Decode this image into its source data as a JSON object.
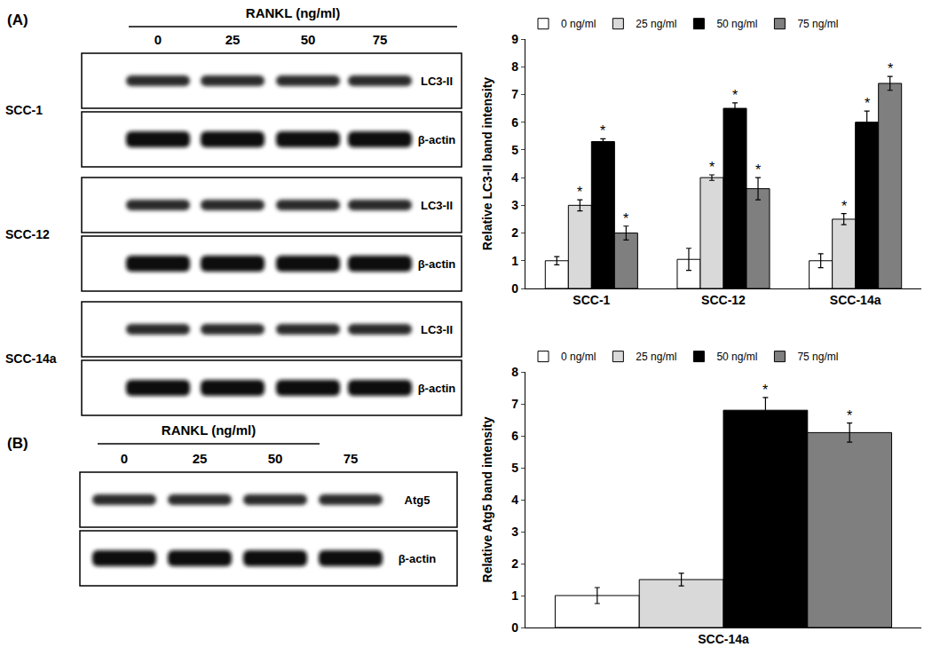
{
  "chart_data": [
    {
      "type": "bar",
      "categories": [
        "SCC-1",
        "SCC-12",
        "SCC-14a"
      ],
      "y_label": "Relative LC3-II band intensity",
      "ylim": [
        0,
        9
      ],
      "yticks": [
        0,
        1,
        2,
        3,
        4,
        5,
        6,
        7,
        8,
        9
      ],
      "grid": false,
      "legend": "top left",
      "series": [
        {
          "name": "0 ng/ml",
          "color": "#ffffff",
          "values": [
            1.0,
            1.05,
            1.0
          ],
          "errors": [
            0.15,
            0.4,
            0.25
          ],
          "annotations": [
            null,
            null,
            null
          ]
        },
        {
          "name": "25 ng/ml",
          "color": "#d9d9d9",
          "values": [
            3.0,
            4.0,
            2.5
          ],
          "errors": [
            0.2,
            0.1,
            0.2
          ],
          "annotations": [
            "*",
            "*",
            "*"
          ]
        },
        {
          "name": "50 ng/ml",
          "color": "#000000",
          "values": [
            5.3,
            6.5,
            6.0
          ],
          "errors": [
            0.1,
            0.2,
            0.4
          ],
          "annotations": [
            "*",
            "*",
            "*"
          ]
        },
        {
          "name": "75 ng/ml",
          "color": "#7f7f7f",
          "values": [
            2.0,
            3.6,
            7.4
          ],
          "errors": [
            0.25,
            0.4,
            0.25
          ],
          "annotations": [
            "*",
            "*",
            "*"
          ]
        }
      ]
    },
    {
      "type": "bar",
      "categories": [
        "SCC-14a"
      ],
      "y_label": "Relative Atg5 band intensity",
      "ylim": [
        0,
        8
      ],
      "yticks": [
        0,
        1,
        2,
        3,
        4,
        5,
        6,
        7,
        8
      ],
      "grid": false,
      "legend": "top left",
      "series": [
        {
          "name": "0 ng/ml",
          "color": "#ffffff",
          "values": [
            1.0
          ],
          "errors": [
            0.25
          ],
          "annotations": [
            null
          ]
        },
        {
          "name": "25 ng/ml",
          "color": "#d9d9d9",
          "values": [
            1.5
          ],
          "errors": [
            0.2
          ],
          "annotations": [
            null
          ]
        },
        {
          "name": "50 ng/ml",
          "color": "#000000",
          "values": [
            6.8
          ],
          "errors": [
            0.4
          ],
          "annotations": [
            "*"
          ]
        },
        {
          "name": "75 ng/ml",
          "color": "#7f7f7f",
          "values": [
            6.1
          ],
          "errors": [
            0.3
          ],
          "annotations": [
            "*"
          ]
        }
      ]
    }
  ],
  "blots": [
    {
      "panel": "(A)",
      "treatment": "RANKL (ng/ml)",
      "lanes": [
        "0",
        "25",
        "50",
        "75"
      ],
      "rows": [
        {
          "cell_line": "SCC-1",
          "bands": [
            "LC3-II",
            "β-actin"
          ]
        },
        {
          "cell_line": "SCC-12",
          "bands": [
            "LC3-II",
            "β-actin"
          ]
        },
        {
          "cell_line": "SCC-14a",
          "bands": [
            "LC3-II",
            "β-actin"
          ]
        }
      ]
    },
    {
      "panel": "(B)",
      "treatment": "RANKL (ng/ml)",
      "lanes": [
        "0",
        "25",
        "50",
        "75"
      ],
      "rows": [
        {
          "bands": [
            "Atg5",
            "β-actin"
          ]
        }
      ]
    }
  ]
}
